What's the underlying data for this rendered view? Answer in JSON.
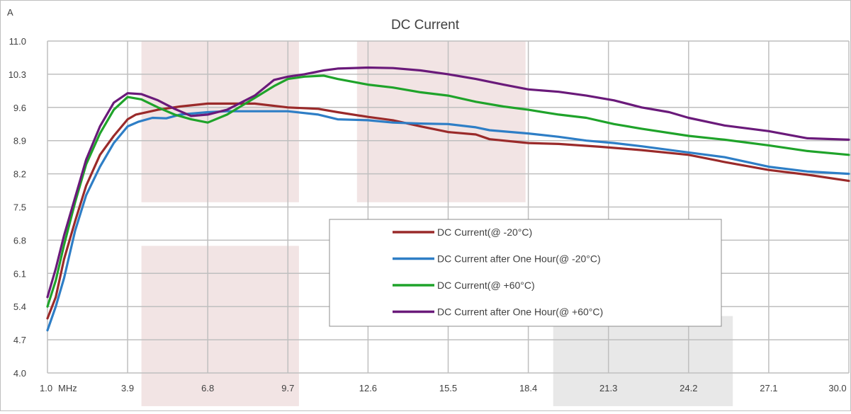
{
  "chart_data": {
    "type": "line",
    "title": "DC Current",
    "ylabel": "A",
    "xunit": "MHz",
    "xlim": [
      1.0,
      30.0
    ],
    "ylim": [
      4.0,
      11.0
    ],
    "xticks": [
      "1.0",
      "3.9",
      "6.8",
      "9.7",
      "12.6",
      "15.5",
      "18.4",
      "21.3",
      "24.2",
      "27.1",
      "30.0"
    ],
    "yticks": [
      "4.0",
      "4.7",
      "5.4",
      "6.1",
      "6.8",
      "7.5",
      "8.2",
      "8.9",
      "9.6",
      "10.3",
      "11.0"
    ],
    "grid": true,
    "legend_position": "center-right",
    "shaded_bands": [
      {
        "x": [
          4.4,
          10.1
        ],
        "y": [
          7.6,
          11.0
        ],
        "color": "#f2e4e4"
      },
      {
        "x": [
          12.2,
          18.3
        ],
        "y": [
          7.6,
          11.0
        ],
        "color": "#f2e4e4"
      },
      {
        "x": [
          4.4,
          10.1
        ],
        "y": [
          3.3,
          6.68
        ],
        "color": "#f2e4e4"
      },
      {
        "x": [
          19.3,
          25.8
        ],
        "y": [
          3.3,
          5.2
        ],
        "color": "#e8e8e8"
      }
    ],
    "series": [
      {
        "name": "DC Current(@ -20°C)",
        "color": "#9a2a2a",
        "x": [
          1.0,
          1.3,
          1.6,
          2.0,
          2.4,
          2.9,
          3.4,
          3.9,
          4.2,
          5.0,
          5.8,
          6.8,
          7.5,
          8.5,
          9.7,
          10.8,
          11.5,
          12.6,
          13.5,
          14.5,
          15.5,
          16.5,
          17.0,
          18.4,
          19.5,
          21.0,
          22.5,
          24.2,
          25.5,
          27.1,
          28.5,
          30.0
        ],
        "values": [
          5.15,
          5.6,
          6.4,
          7.2,
          7.95,
          8.6,
          9.0,
          9.35,
          9.45,
          9.55,
          9.62,
          9.68,
          9.68,
          9.68,
          9.6,
          9.57,
          9.5,
          9.4,
          9.33,
          9.2,
          9.08,
          9.03,
          8.93,
          8.85,
          8.83,
          8.77,
          8.7,
          8.6,
          8.45,
          8.28,
          8.18,
          8.05
        ]
      },
      {
        "name": "DC Current after One Hour(@ -20°C)",
        "color": "#2e7ec6",
        "x": [
          1.0,
          1.3,
          1.6,
          2.0,
          2.4,
          2.9,
          3.4,
          3.9,
          4.3,
          4.8,
          5.3,
          5.8,
          6.8,
          7.5,
          8.5,
          9.7,
          10.8,
          11.5,
          12.6,
          13.5,
          14.5,
          15.5,
          16.5,
          17.0,
          18.4,
          19.5,
          20.5,
          21.5,
          22.5,
          24.2,
          25.5,
          27.1,
          28.5,
          30.0
        ],
        "values": [
          4.9,
          5.4,
          6.0,
          7.0,
          7.75,
          8.35,
          8.85,
          9.2,
          9.3,
          9.38,
          9.37,
          9.45,
          9.5,
          9.52,
          9.52,
          9.52,
          9.45,
          9.35,
          9.33,
          9.28,
          9.26,
          9.25,
          9.18,
          9.12,
          9.05,
          8.98,
          8.9,
          8.85,
          8.78,
          8.65,
          8.55,
          8.35,
          8.25,
          8.2
        ]
      },
      {
        "name": "DC Current(@ +60°C)",
        "color": "#1fa32a",
        "x": [
          1.0,
          1.3,
          1.6,
          2.0,
          2.4,
          2.9,
          3.4,
          3.9,
          4.4,
          5.0,
          5.6,
          6.2,
          6.8,
          7.5,
          8.5,
          9.2,
          9.7,
          10.3,
          11.0,
          11.5,
          12.6,
          13.5,
          14.5,
          15.5,
          16.5,
          17.5,
          18.4,
          19.5,
          20.5,
          21.5,
          22.5,
          24.2,
          25.5,
          27.1,
          28.5,
          30.0
        ],
        "values": [
          5.4,
          5.95,
          6.7,
          7.6,
          8.4,
          9.05,
          9.55,
          9.82,
          9.77,
          9.6,
          9.45,
          9.35,
          9.28,
          9.45,
          9.8,
          10.05,
          10.2,
          10.25,
          10.27,
          10.2,
          10.08,
          10.02,
          9.92,
          9.85,
          9.72,
          9.62,
          9.55,
          9.45,
          9.38,
          9.25,
          9.15,
          9.0,
          8.92,
          8.8,
          8.68,
          8.6
        ]
      },
      {
        "name": "DC Current after One Hour(@ +60°C)",
        "color": "#6a1a7a",
        "x": [
          1.0,
          1.3,
          1.6,
          2.0,
          2.4,
          2.9,
          3.4,
          3.9,
          4.4,
          5.0,
          5.6,
          6.2,
          6.8,
          7.5,
          8.5,
          9.2,
          9.7,
          10.3,
          11.0,
          11.5,
          12.6,
          13.5,
          14.5,
          15.5,
          16.5,
          17.5,
          18.4,
          19.5,
          20.5,
          21.5,
          22.5,
          23.5,
          24.2,
          25.5,
          27.1,
          28.5,
          30.0
        ],
        "values": [
          5.6,
          6.2,
          6.9,
          7.7,
          8.5,
          9.2,
          9.7,
          9.9,
          9.88,
          9.75,
          9.57,
          9.42,
          9.45,
          9.55,
          9.85,
          10.18,
          10.25,
          10.3,
          10.38,
          10.42,
          10.44,
          10.43,
          10.38,
          10.3,
          10.2,
          10.08,
          9.98,
          9.93,
          9.85,
          9.75,
          9.6,
          9.5,
          9.38,
          9.22,
          9.1,
          8.95,
          8.92
        ]
      }
    ]
  }
}
